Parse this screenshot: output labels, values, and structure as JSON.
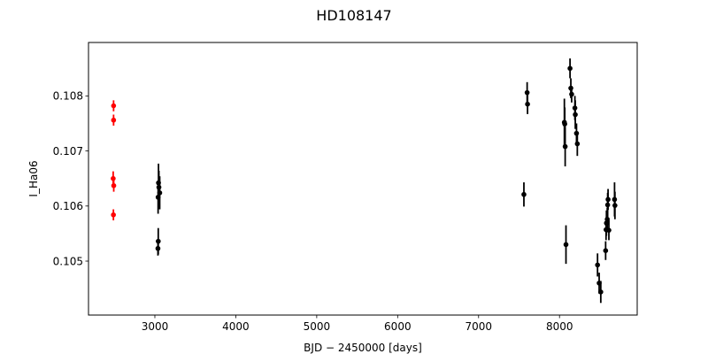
{
  "chart_data": {
    "type": "scatter",
    "title": "HD108147",
    "xlabel": "BJD − 2450000 [days]",
    "ylabel": "I_Ha06",
    "xlim": [
      2180,
      8960
    ],
    "ylim": [
      0.10402,
      0.10897
    ],
    "xticks": [
      3000,
      4000,
      5000,
      6000,
      7000,
      8000
    ],
    "yticks": [
      0.105,
      0.106,
      0.107,
      0.108
    ],
    "grid": false,
    "legend": "none",
    "series": [
      {
        "color": "#ff0000",
        "points": [
          {
            "x": 2490,
            "y": 0.10782,
            "err": 0.0001
          },
          {
            "x": 2490,
            "y": 0.10756,
            "err": 0.0001
          },
          {
            "x": 2485,
            "y": 0.1065,
            "err": 0.00013
          },
          {
            "x": 2492,
            "y": 0.10637,
            "err": 0.00011
          },
          {
            "x": 2488,
            "y": 0.10584,
            "err": 0.0001
          }
        ]
      },
      {
        "color": "#000000",
        "points": [
          {
            "x": 3045,
            "y": 0.10642,
            "err": 0.00035
          },
          {
            "x": 3050,
            "y": 0.10634,
            "err": 0.0003
          },
          {
            "x": 3040,
            "y": 0.10616,
            "err": 0.0003
          },
          {
            "x": 3060,
            "y": 0.10624,
            "err": 0.0003
          },
          {
            "x": 3038,
            "y": 0.10523,
            "err": 0.00013
          },
          {
            "x": 3042,
            "y": 0.10536,
            "err": 0.00024
          },
          {
            "x": 7560,
            "y": 0.10621,
            "err": 0.00022
          },
          {
            "x": 7600,
            "y": 0.10806,
            "err": 0.00019
          },
          {
            "x": 7605,
            "y": 0.10785,
            "err": 0.00018
          },
          {
            "x": 8060,
            "y": 0.10752,
            "err": 0.00043
          },
          {
            "x": 8065,
            "y": 0.10749,
            "err": 0.0003
          },
          {
            "x": 8070,
            "y": 0.10708,
            "err": 0.00036
          },
          {
            "x": 8080,
            "y": 0.1053,
            "err": 0.00035
          },
          {
            "x": 8130,
            "y": 0.1085,
            "err": 0.00018
          },
          {
            "x": 8140,
            "y": 0.10814,
            "err": 0.00018
          },
          {
            "x": 8150,
            "y": 0.10803,
            "err": 0.00015
          },
          {
            "x": 8190,
            "y": 0.10778,
            "err": 0.00022
          },
          {
            "x": 8195,
            "y": 0.10766,
            "err": 0.00026
          },
          {
            "x": 8210,
            "y": 0.10732,
            "err": 0.00018
          },
          {
            "x": 8220,
            "y": 0.10713,
            "err": 0.00022
          },
          {
            "x": 8470,
            "y": 0.10493,
            "err": 0.00021
          },
          {
            "x": 8490,
            "y": 0.1046,
            "err": 0.00019
          },
          {
            "x": 8510,
            "y": 0.10444,
            "err": 0.0002
          },
          {
            "x": 8570,
            "y": 0.10519,
            "err": 0.00017
          },
          {
            "x": 8575,
            "y": 0.10557,
            "err": 0.00019
          },
          {
            "x": 8580,
            "y": 0.10569,
            "err": 0.00023
          },
          {
            "x": 8590,
            "y": 0.10576,
            "err": 0.00021
          },
          {
            "x": 8595,
            "y": 0.10602,
            "err": 0.00022
          },
          {
            "x": 8600,
            "y": 0.10612,
            "err": 0.00019
          },
          {
            "x": 8610,
            "y": 0.10556,
            "err": 0.00018
          },
          {
            "x": 8680,
            "y": 0.10612,
            "err": 0.00031
          },
          {
            "x": 8685,
            "y": 0.10601,
            "err": 0.00025
          }
        ]
      }
    ]
  }
}
